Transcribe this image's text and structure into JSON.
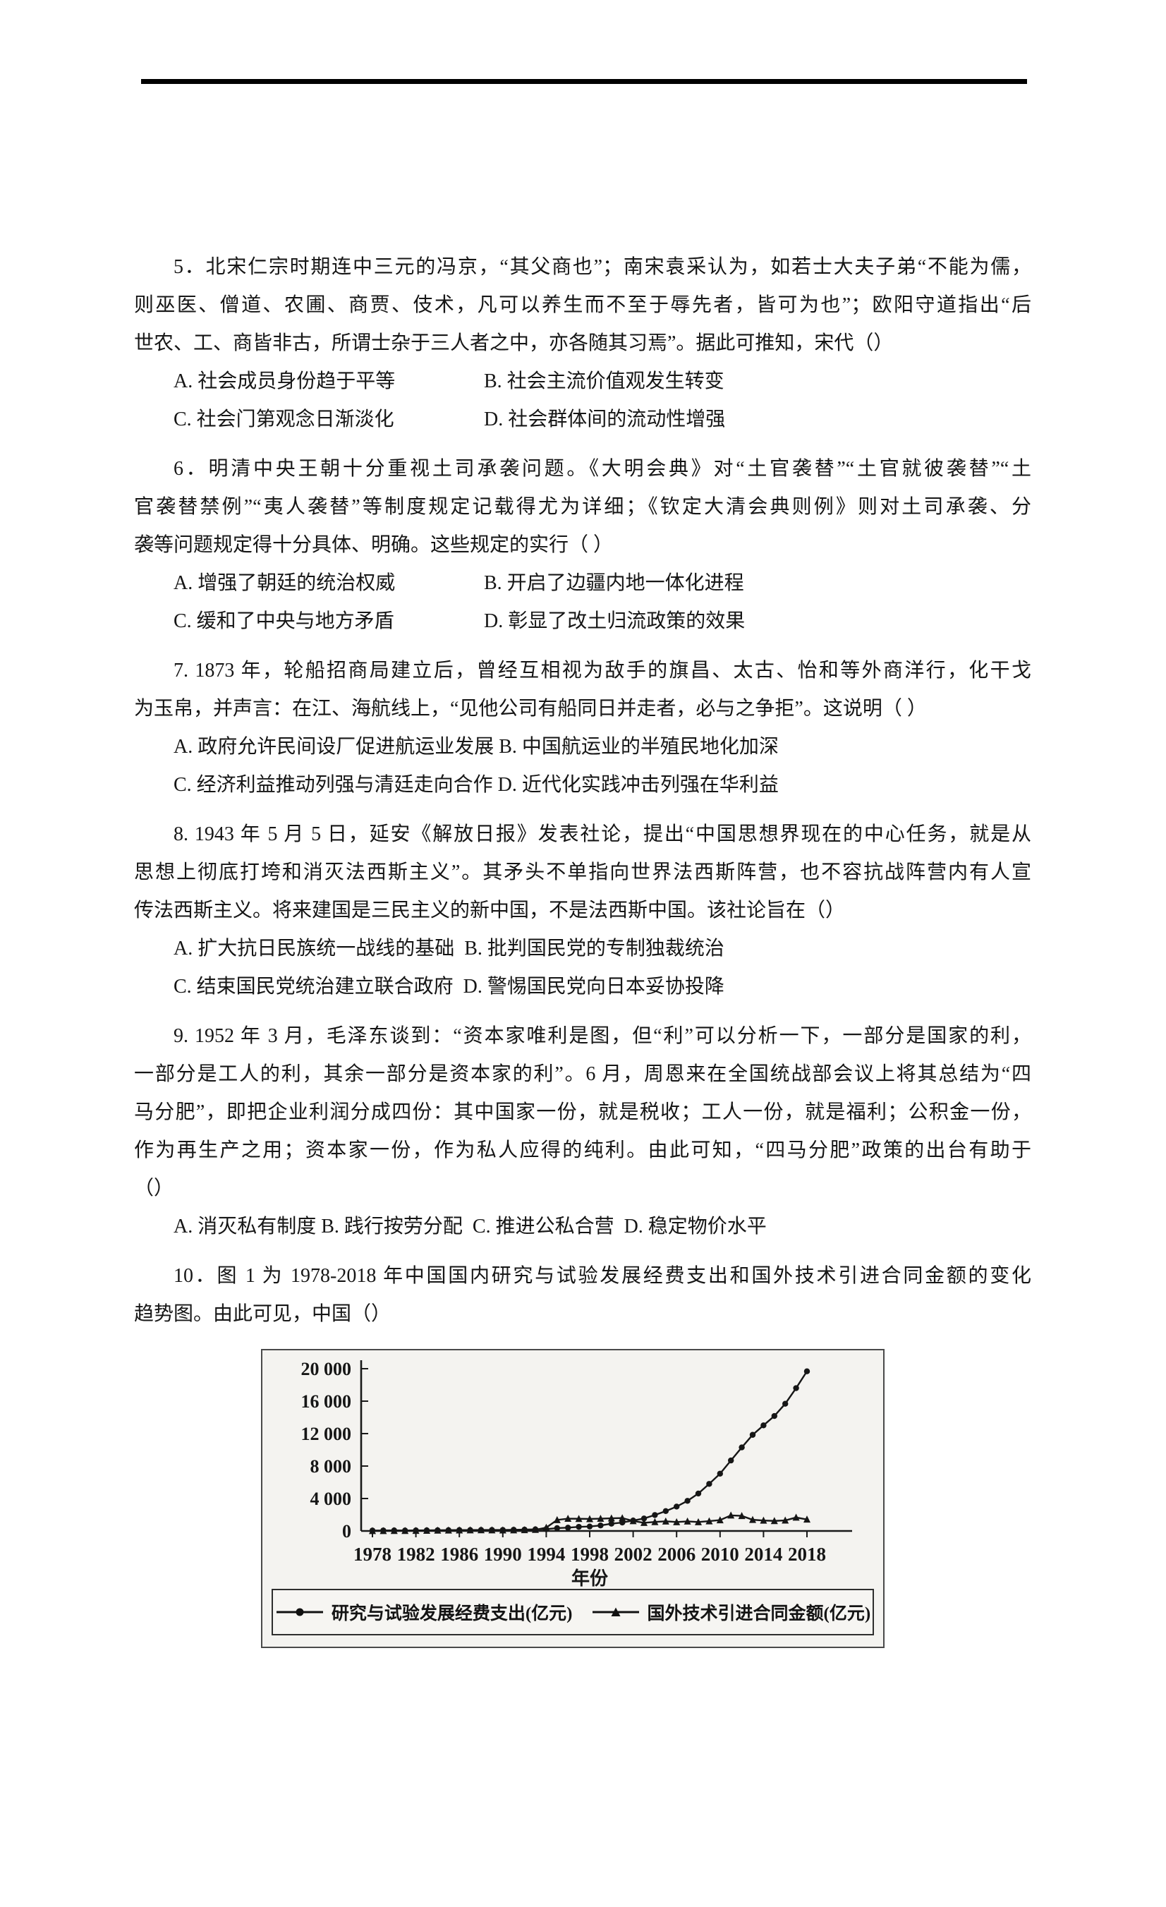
{
  "questions": [
    {
      "number": "5",
      "body_lines": [
        "5．北宋仁宗时期连中三元的冯京，“其父商也”；南宋袁采认为，如若士大夫子弟“不能为儒，",
        "则巫医、僧道、农圃、商贾、伎术，凡可以养生而不至于辱先者，皆可为也”；欧阳守道指出“后",
        "世农、工、商皆非古，所谓士杂于三人者之中，亦各随其习焉”。据此可推知，宋代（）"
      ],
      "option_rows": [
        {
          "left": "A. 社会成员身份趋于平等",
          "right": "B. 社会主流价值观发生转变"
        },
        {
          "left": "C. 社会门第观念日渐淡化",
          "right": "D. 社会群体间的流动性增强"
        }
      ]
    },
    {
      "number": "6",
      "body_lines": [
        "6．明清中央王朝十分重视土司承袭问题。《大明会典》对“土官袭替”“土官就彼袭替”“土",
        "官袭替禁例”“夷人袭替”等制度规定记载得尤为详细；《钦定大清会典则例》则对土司承袭、分",
        "袭等问题规定得十分具体、明确。这些规定的实行（ ）"
      ],
      "option_rows": [
        {
          "left": "A. 增强了朝廷的统治权威",
          "right": "B. 开启了边疆内地一体化进程"
        },
        {
          "left": "C. 缓和了中央与地方矛盾",
          "right": "D. 彰显了改土归流政策的效果"
        }
      ]
    },
    {
      "number": "7",
      "body_lines": [
        "7. 1873 年，轮船招商局建立后，曾经互相视为敌手的旗昌、太古、怡和等外商洋行，化干戈",
        "为玉帛，并声言：在江、海航线上，“见他公司有船同日并走者，必与之争拒”。这说明（ ）"
      ],
      "option_lines": [
        "A. 政府允许民间设厂促进航运业发展 B. 中国航运业的半殖民地化加深",
        "C. 经济利益推动列强与清廷走向合作 D. 近代化实践冲击列强在华利益"
      ]
    },
    {
      "number": "8",
      "body_lines": [
        "8. 1943 年 5 月 5 日，延安《解放日报》发表社论，提出“中国思想界现在的中心任务，就是从",
        "思想上彻底打垮和消灭法西斯主义”。其矛头不单指向世界法西斯阵营，也不容抗战阵营内有人宣",
        "传法西斯主义。将来建国是三民主义的新中国，不是法西斯中国。该社论旨在（）"
      ],
      "option_lines": [
        "A. 扩大抗日民族统一战线的基础  B. 批判国民党的专制独裁统治",
        "C. 结束国民党统治建立联合政府  D. 警惕国民党向日本妥协投降"
      ]
    },
    {
      "number": "9",
      "body_lines": [
        "9. 1952 年 3 月，毛泽东谈到：“资本家唯利是图，但“利”可以分析一下，一部分是国家的利，",
        "一部分是工人的利，其余一部分是资本家的利”。6 月，周恩来在全国统战部会议上将其总结为“四",
        "马分肥”，即把企业利润分成四份：其中国家一份，就是税收；工人一份，就是福利；公积金一份，",
        "作为再生产之用；资本家一份，作为私人应得的纯利。由此可知，“四马分肥”政策的出台有助于",
        "（）"
      ],
      "option_lines": [
        "A. 消灭私有制度 B. 践行按劳分配  C. 推进公私合营  D. 稳定物价水平"
      ]
    },
    {
      "number": "10",
      "body_lines": [
        "10．图 1 为 1978-2018 年中国国内研究与试验发展经费支出和国外技术引进合同金额的变化",
        "趋势图。由此可见，中国（）"
      ]
    }
  ],
  "chart_data": {
    "type": "line",
    "title": "",
    "xlabel": "年份",
    "ylabel": "",
    "ylim": [
      0,
      20000
    ],
    "xlim": [
      1978,
      2018
    ],
    "grid": false,
    "legend_position": "bottom",
    "y_ticks": [
      0,
      4000,
      8000,
      12000,
      16000,
      20000
    ],
    "y_tick_labels": [
      "0",
      "4 000",
      "8 000",
      "12 000",
      "16 000",
      "20 000"
    ],
    "x_ticks": [
      1978,
      1982,
      1986,
      1990,
      1994,
      1998,
      2002,
      2006,
      2010,
      2014,
      2018
    ],
    "x": [
      1978,
      1979,
      1980,
      1981,
      1982,
      1983,
      1984,
      1985,
      1986,
      1987,
      1988,
      1989,
      1990,
      1991,
      1992,
      1993,
      1994,
      1995,
      1996,
      1997,
      1998,
      1999,
      2000,
      2001,
      2002,
      2003,
      2004,
      2005,
      2006,
      2007,
      2008,
      2009,
      2010,
      2011,
      2012,
      2013,
      2014,
      2015,
      2016,
      2017,
      2018
    ],
    "series": [
      {
        "name": "研究与试验发展经费支出(亿元)",
        "marker": "circle",
        "values": [
          53,
          63,
          65,
          62,
          65,
          79,
          95,
          102,
          112,
          114,
          121,
          127,
          125,
          151,
          169,
          196,
          222,
          349,
          404,
          509,
          551,
          679,
          896,
          1042,
          1288,
          1540,
          1966,
          2450,
          3003,
          3710,
          4616,
          5802,
          7063,
          8687,
          10298,
          11847,
          13016,
          14170,
          15677,
          17606,
          19678
        ]
      },
      {
        "name": "国外技术引进合同金额(亿元)",
        "marker": "triangle",
        "values": [
          10,
          15,
          20,
          25,
          30,
          40,
          60,
          80,
          90,
          100,
          110,
          100,
          90,
          100,
          120,
          150,
          410,
          1360,
          1520,
          1500,
          1480,
          1520,
          1560,
          1590,
          1230,
          1010,
          1110,
          1190,
          1100,
          1180,
          1100,
          1210,
          1340,
          1920,
          1860,
          1380,
          1290,
          1240,
          1300,
          1660,
          1420
        ]
      }
    ]
  }
}
